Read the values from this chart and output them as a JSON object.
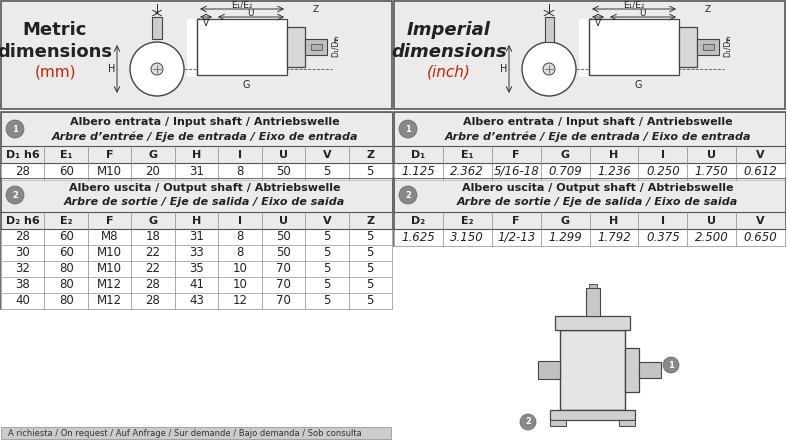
{
  "bg_color": "#ffffff",
  "panel_bg": "#ebebeb",
  "border_color": "#555555",
  "text_dark": "#222222",
  "text_red": "#cc2200",
  "note_bg": "#cccccc",
  "metric_title_line1": "Metric",
  "metric_title_line2": "dimensions",
  "metric_title_line3": "(mm)",
  "imperial_title_line1": "Imperial",
  "imperial_title_line2": "dimensions",
  "imperial_title_line3": "(inch)",
  "table1_title_line1": "Albero entrata / Input shaft / Antriebswelle",
  "table1_title_line2": "Arbre d’entrée / Eje de entrada / Eixo de entrada",
  "table1_metric_headers": [
    "D₁ h6",
    "E₁",
    "F",
    "G",
    "H",
    "I",
    "U",
    "V",
    "Z"
  ],
  "table1_metric_data": [
    [
      "28",
      "60",
      "M10",
      "20",
      "31",
      "8",
      "50",
      "5",
      "5"
    ]
  ],
  "table1_imperial_headers": [
    "D₁",
    "E₁",
    "F",
    "G",
    "H",
    "I",
    "U",
    "V"
  ],
  "table1_imperial_data": [
    [
      "1.125",
      "2.362",
      "5/16-18",
      "0.709",
      "1.236",
      "0.250",
      "1.750",
      "0.612"
    ]
  ],
  "table2_title_line1": "Albero uscita / Output shaft / Abtriebswelle",
  "table2_title_line2": "Arbre de sortie / Eje de salida / Eixo de saida",
  "table2_metric_headers": [
    "D₂ h6",
    "E₂",
    "F",
    "G",
    "H",
    "I",
    "U",
    "V",
    "Z"
  ],
  "table2_metric_data": [
    [
      "28",
      "60",
      "M8",
      "18",
      "31",
      "8",
      "50",
      "5",
      "5"
    ],
    [
      "30",
      "60",
      "M10",
      "22",
      "33",
      "8",
      "50",
      "5",
      "5"
    ],
    [
      "32",
      "80",
      "M10",
      "22",
      "35",
      "10",
      "70",
      "5",
      "5"
    ],
    [
      "38",
      "80",
      "M12",
      "28",
      "41",
      "10",
      "70",
      "5",
      "5"
    ],
    [
      "40",
      "80",
      "M12",
      "28",
      "43",
      "12",
      "70",
      "5",
      "5"
    ]
  ],
  "table2_imperial_headers": [
    "D₂",
    "E₂",
    "F",
    "G",
    "H",
    "I",
    "U",
    "V"
  ],
  "table2_imperial_data": [
    [
      "1.625",
      "3.150",
      "1/2-13",
      "1.299",
      "1.792",
      "0.375",
      "2.500",
      "0.650"
    ]
  ],
  "note_text": "A richiesta / On request / Auf Anfrage / Sur demande / Bajo demanda / Sob consulta",
  "figsize": [
    7.87,
    4.41
  ],
  "dpi": 100
}
